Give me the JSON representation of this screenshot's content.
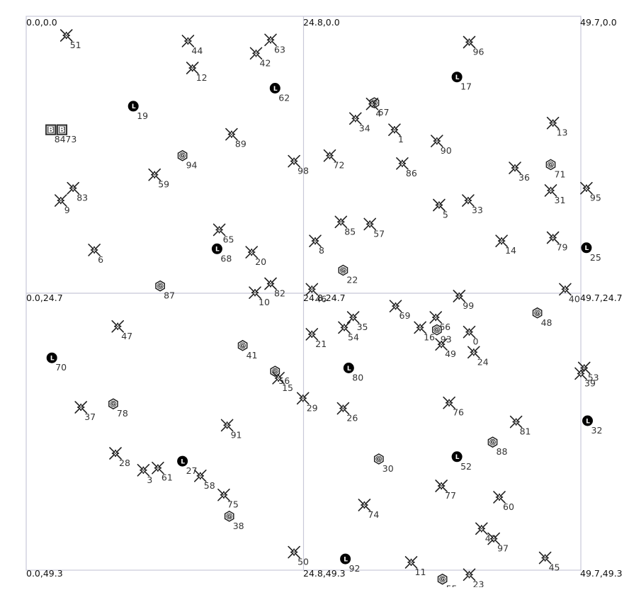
{
  "map": {
    "bounds": {
      "x_max": 49.7,
      "y_max": 49.3
    },
    "corner_labels": [
      {
        "id": "tl",
        "text": "0.0,0.0"
      },
      {
        "id": "tm",
        "text": "24.8,0.0"
      },
      {
        "id": "tr",
        "text": "49.7,0.0"
      },
      {
        "id": "ml",
        "text": "0.0,24.7"
      },
      {
        "id": "mm",
        "text": "24.8,24.7"
      },
      {
        "id": "mr",
        "text": "49.7,24.7"
      },
      {
        "id": "bl",
        "text": "0.0,49.3"
      },
      {
        "id": "bm",
        "text": "24.8,49.3"
      },
      {
        "id": "br",
        "text": "49.7,49.3"
      }
    ],
    "colors": {
      "grid": "#c8c8d8",
      "symbol": "#222222",
      "label": "#333333"
    },
    "legend_symbols": {
      "M": "spark-marker-icon",
      "G": "hexagon-g-icon",
      "L": "black-circle-l-icon",
      "B": "square-b-icon"
    },
    "points": [
      {
        "id": "51",
        "x": 3.6,
        "y": 1.7,
        "t": "M"
      },
      {
        "id": "44",
        "x": 14.5,
        "y": 2.2,
        "t": "M"
      },
      {
        "id": "42",
        "x": 20.6,
        "y": 3.3,
        "t": "M"
      },
      {
        "id": "63",
        "x": 21.9,
        "y": 2.1,
        "t": "M"
      },
      {
        "id": "12",
        "x": 14.9,
        "y": 4.6,
        "t": "M"
      },
      {
        "id": "62",
        "x": 22.3,
        "y": 6.4,
        "t": "L"
      },
      {
        "id": "19",
        "x": 9.6,
        "y": 8.0,
        "t": "L"
      },
      {
        "id": "84",
        "x": 2.2,
        "y": 10.1,
        "t": "B"
      },
      {
        "id": "73",
        "x": 3.2,
        "y": 10.1,
        "t": "B"
      },
      {
        "id": "89",
        "x": 18.4,
        "y": 10.5,
        "t": "M"
      },
      {
        "id": "94",
        "x": 14.0,
        "y": 12.4,
        "t": "G"
      },
      {
        "id": "59",
        "x": 11.5,
        "y": 14.1,
        "t": "M"
      },
      {
        "id": "83",
        "x": 4.2,
        "y": 15.3,
        "t": "M"
      },
      {
        "id": "9",
        "x": 3.1,
        "y": 16.4,
        "t": "M"
      },
      {
        "id": "98",
        "x": 24.0,
        "y": 12.9,
        "t": "M"
      },
      {
        "id": "65",
        "x": 17.3,
        "y": 19.0,
        "t": "M"
      },
      {
        "id": "68",
        "x": 17.1,
        "y": 20.7,
        "t": "L"
      },
      {
        "id": "20",
        "x": 20.2,
        "y": 21.0,
        "t": "M"
      },
      {
        "id": "6",
        "x": 6.1,
        "y": 20.8,
        "t": "M"
      },
      {
        "id": "87",
        "x": 12.0,
        "y": 24.0,
        "t": "G"
      },
      {
        "id": "82",
        "x": 21.9,
        "y": 23.8,
        "t": "M"
      },
      {
        "id": "10",
        "x": 20.5,
        "y": 24.6,
        "t": "M"
      },
      {
        "id": "46",
        "x": 25.6,
        "y": 24.3,
        "t": "M"
      },
      {
        "id": "67",
        "x": 31.2,
        "y": 7.7,
        "t": "G"
      },
      {
        "id": "4",
        "x": 31.0,
        "y": 7.8,
        "t": "M"
      },
      {
        "id": "34",
        "x": 29.5,
        "y": 9.1,
        "t": "M"
      },
      {
        "id": "1",
        "x": 33.0,
        "y": 10.1,
        "t": "M"
      },
      {
        "id": "17",
        "x": 38.6,
        "y": 5.4,
        "t": "L"
      },
      {
        "id": "96",
        "x": 39.7,
        "y": 2.3,
        "t": "M"
      },
      {
        "id": "90",
        "x": 36.8,
        "y": 11.1,
        "t": "M"
      },
      {
        "id": "72",
        "x": 27.2,
        "y": 12.4,
        "t": "M"
      },
      {
        "id": "86",
        "x": 33.7,
        "y": 13.1,
        "t": "M"
      },
      {
        "id": "13",
        "x": 47.2,
        "y": 9.5,
        "t": "M"
      },
      {
        "id": "36",
        "x": 43.8,
        "y": 13.5,
        "t": "M"
      },
      {
        "id": "71",
        "x": 47.0,
        "y": 13.2,
        "t": "G"
      },
      {
        "id": "31",
        "x": 47.0,
        "y": 15.5,
        "t": "M"
      },
      {
        "id": "95",
        "x": 50.2,
        "y": 15.3,
        "t": "M"
      },
      {
        "id": "33",
        "x": 39.6,
        "y": 16.4,
        "t": "M"
      },
      {
        "id": "5",
        "x": 37.0,
        "y": 16.8,
        "t": "M"
      },
      {
        "id": "85",
        "x": 28.2,
        "y": 18.3,
        "t": "M"
      },
      {
        "id": "57",
        "x": 30.8,
        "y": 18.5,
        "t": "M"
      },
      {
        "id": "8",
        "x": 25.9,
        "y": 20.0,
        "t": "M"
      },
      {
        "id": "14",
        "x": 42.6,
        "y": 20.0,
        "t": "M"
      },
      {
        "id": "79",
        "x": 47.2,
        "y": 19.7,
        "t": "M"
      },
      {
        "id": "25",
        "x": 50.2,
        "y": 20.6,
        "t": "L"
      },
      {
        "id": "22",
        "x": 28.4,
        "y": 22.6,
        "t": "G"
      },
      {
        "id": "40",
        "x": 48.3,
        "y": 24.3,
        "t": "M"
      },
      {
        "id": "99",
        "x": 38.8,
        "y": 24.9,
        "t": "M"
      },
      {
        "id": "47",
        "x": 8.2,
        "y": 27.6,
        "t": "M"
      },
      {
        "id": "70",
        "x": 2.3,
        "y": 30.4,
        "t": "L"
      },
      {
        "id": "41",
        "x": 19.4,
        "y": 29.3,
        "t": "G"
      },
      {
        "id": "56",
        "x": 22.3,
        "y": 31.6,
        "t": "G"
      },
      {
        "id": "15",
        "x": 22.6,
        "y": 32.2,
        "t": "M"
      },
      {
        "id": "37",
        "x": 4.9,
        "y": 34.8,
        "t": "M"
      },
      {
        "id": "78",
        "x": 7.8,
        "y": 34.5,
        "t": "G"
      },
      {
        "id": "91",
        "x": 18.0,
        "y": 36.4,
        "t": "M"
      },
      {
        "id": "28",
        "x": 8.0,
        "y": 38.9,
        "t": "M"
      },
      {
        "id": "3",
        "x": 10.5,
        "y": 40.4,
        "t": "M"
      },
      {
        "id": "61",
        "x": 11.8,
        "y": 40.2,
        "t": "M"
      },
      {
        "id": "27",
        "x": 14.0,
        "y": 39.6,
        "t": "L"
      },
      {
        "id": "58",
        "x": 15.6,
        "y": 40.9,
        "t": "M"
      },
      {
        "id": "75",
        "x": 17.7,
        "y": 42.6,
        "t": "M"
      },
      {
        "id": "38",
        "x": 18.2,
        "y": 44.5,
        "t": "G"
      },
      {
        "id": "50",
        "x": 24.0,
        "y": 47.7,
        "t": "M"
      },
      {
        "id": "69",
        "x": 33.1,
        "y": 25.8,
        "t": "M"
      },
      {
        "id": "35",
        "x": 29.3,
        "y": 26.8,
        "t": "M"
      },
      {
        "id": "54",
        "x": 28.5,
        "y": 27.7,
        "t": "M"
      },
      {
        "id": "21",
        "x": 25.6,
        "y": 28.3,
        "t": "M"
      },
      {
        "id": "16",
        "x": 35.3,
        "y": 27.7,
        "t": "M"
      },
      {
        "id": "66",
        "x": 36.7,
        "y": 26.8,
        "t": "M"
      },
      {
        "id": "93",
        "x": 36.8,
        "y": 27.9,
        "t": "G"
      },
      {
        "id": "49",
        "x": 37.2,
        "y": 29.2,
        "t": "M"
      },
      {
        "id": "0",
        "x": 39.7,
        "y": 28.1,
        "t": "M"
      },
      {
        "id": "24",
        "x": 40.1,
        "y": 29.9,
        "t": "M"
      },
      {
        "id": "48",
        "x": 45.8,
        "y": 26.4,
        "t": "G"
      },
      {
        "id": "80",
        "x": 28.9,
        "y": 31.3,
        "t": "L"
      },
      {
        "id": "53",
        "x": 50.0,
        "y": 31.3,
        "t": "M"
      },
      {
        "id": "39",
        "x": 49.7,
        "y": 31.8,
        "t": "M"
      },
      {
        "id": "29",
        "x": 24.8,
        "y": 34.0,
        "t": "M"
      },
      {
        "id": "26",
        "x": 28.4,
        "y": 34.9,
        "t": "M"
      },
      {
        "id": "76",
        "x": 37.9,
        "y": 34.4,
        "t": "M"
      },
      {
        "id": "81",
        "x": 43.9,
        "y": 36.1,
        "t": "M"
      },
      {
        "id": "32",
        "x": 50.3,
        "y": 36.0,
        "t": "L"
      },
      {
        "id": "88",
        "x": 41.8,
        "y": 37.9,
        "t": "G"
      },
      {
        "id": "30",
        "x": 31.6,
        "y": 39.4,
        "t": "G"
      },
      {
        "id": "52",
        "x": 38.6,
        "y": 39.2,
        "t": "L"
      },
      {
        "id": "77",
        "x": 37.2,
        "y": 41.8,
        "t": "M"
      },
      {
        "id": "60",
        "x": 42.4,
        "y": 42.8,
        "t": "M"
      },
      {
        "id": "74",
        "x": 30.3,
        "y": 43.5,
        "t": "M"
      },
      {
        "id": "43",
        "x": 40.8,
        "y": 45.6,
        "t": "M"
      },
      {
        "id": "97",
        "x": 41.9,
        "y": 46.5,
        "t": "M"
      },
      {
        "id": "45",
        "x": 46.5,
        "y": 48.2,
        "t": "M"
      },
      {
        "id": "92",
        "x": 28.6,
        "y": 48.3,
        "t": "L"
      },
      {
        "id": "11",
        "x": 34.5,
        "y": 48.6,
        "t": "M"
      },
      {
        "id": "23",
        "x": 39.7,
        "y": 49.7,
        "t": "M"
      },
      {
        "id": "55",
        "x": 37.3,
        "y": 50.1,
        "t": "G"
      }
    ]
  }
}
